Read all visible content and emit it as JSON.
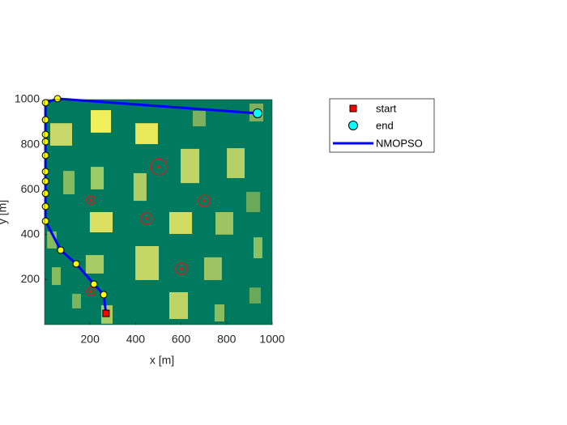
{
  "chart_data": {
    "type": "line",
    "xlabel": "x [m]",
    "ylabel": "y [m]",
    "xlim": [
      0,
      1000
    ],
    "ylim": [
      0,
      1000
    ],
    "xticks": [
      200,
      400,
      600,
      800,
      1000
    ],
    "yticks": [
      200,
      400,
      600,
      800,
      1000
    ],
    "background": "#007a5e",
    "series": [
      {
        "name": "NMOPSO",
        "color": "#0000ff",
        "marker_color": "#ffff00",
        "x": [
          270,
          260,
          217,
          139,
          71,
          4,
          4,
          4,
          4,
          4,
          4,
          4,
          4,
          4,
          4,
          57,
          936
        ],
        "y": [
          50,
          133,
          180,
          270,
          331,
          460,
          525,
          583,
          637,
          680,
          752,
          813,
          845,
          910,
          986,
          1004,
          939
        ]
      }
    ],
    "start": {
      "name": "start",
      "x": 270,
      "y": 50,
      "color": "#ff0000"
    },
    "end": {
      "name": "end",
      "x": 936,
      "y": 939,
      "color": "#00ffff"
    },
    "buildings": [
      {
        "x": 25,
        "y": 795,
        "w": 96,
        "h": 100,
        "color": "#c8d86a"
      },
      {
        "x": 203,
        "y": 853,
        "w": 89,
        "h": 100,
        "color": "#f0ef5c"
      },
      {
        "x": 399,
        "y": 802,
        "w": 99,
        "h": 93,
        "color": "#e8e85a"
      },
      {
        "x": 651,
        "y": 881,
        "w": 57,
        "h": 69,
        "color": "#7fb060"
      },
      {
        "x": 900,
        "y": 903,
        "w": 61,
        "h": 79,
        "color": "#7fb060"
      },
      {
        "x": 598,
        "y": 629,
        "w": 82,
        "h": 152,
        "color": "#c0d468"
      },
      {
        "x": 801,
        "y": 651,
        "w": 78,
        "h": 133,
        "color": "#b4d066"
      },
      {
        "x": 203,
        "y": 601,
        "w": 57,
        "h": 100,
        "color": "#9ccc64"
      },
      {
        "x": 82,
        "y": 579,
        "w": 50,
        "h": 104,
        "color": "#86bc60"
      },
      {
        "x": 391,
        "y": 550,
        "w": 57,
        "h": 123,
        "color": "#b0cc66"
      },
      {
        "x": 886,
        "y": 500,
        "w": 61,
        "h": 90,
        "color": "#6aa85a"
      },
      {
        "x": 199,
        "y": 410,
        "w": 100,
        "h": 90,
        "color": "#dcdf60"
      },
      {
        "x": 548,
        "y": 403,
        "w": 100,
        "h": 97,
        "color": "#d0dc62"
      },
      {
        "x": 751,
        "y": 400,
        "w": 78,
        "h": 100,
        "color": "#9cc464"
      },
      {
        "x": 11,
        "y": 338,
        "w": 42,
        "h": 76,
        "color": "#86bc60"
      },
      {
        "x": 918,
        "y": 295,
        "w": 39,
        "h": 93,
        "color": "#8cc062"
      },
      {
        "x": 181,
        "y": 227,
        "w": 79,
        "h": 82,
        "color": "#a8cc64"
      },
      {
        "x": 399,
        "y": 198,
        "w": 103,
        "h": 151,
        "color": "#c4d666"
      },
      {
        "x": 701,
        "y": 198,
        "w": 78,
        "h": 101,
        "color": "#9cc464"
      },
      {
        "x": 32,
        "y": 176,
        "w": 39,
        "h": 79,
        "color": "#86bc60"
      },
      {
        "x": 900,
        "y": 94,
        "w": 50,
        "h": 71,
        "color": "#6aa85a"
      },
      {
        "x": 548,
        "y": 25,
        "w": 82,
        "h": 119,
        "color": "#c0d466"
      },
      {
        "x": 121,
        "y": 72,
        "w": 39,
        "h": 65,
        "color": "#7cb45e"
      },
      {
        "x": 747,
        "y": 14,
        "w": 43,
        "h": 76,
        "color": "#8cbc60"
      },
      {
        "x": 249,
        "y": 4,
        "w": 50,
        "h": 82,
        "color": "#a8cc64"
      }
    ],
    "threats": [
      {
        "x": 502,
        "y": 701,
        "r": 39
      },
      {
        "x": 203,
        "y": 554,
        "r": 21
      },
      {
        "x": 701,
        "y": 550,
        "r": 28
      },
      {
        "x": 448,
        "y": 471,
        "r": 28
      },
      {
        "x": 601,
        "y": 248,
        "r": 28
      },
      {
        "x": 203,
        "y": 147,
        "r": 21
      }
    ],
    "threat_color": "#d42020"
  }
}
